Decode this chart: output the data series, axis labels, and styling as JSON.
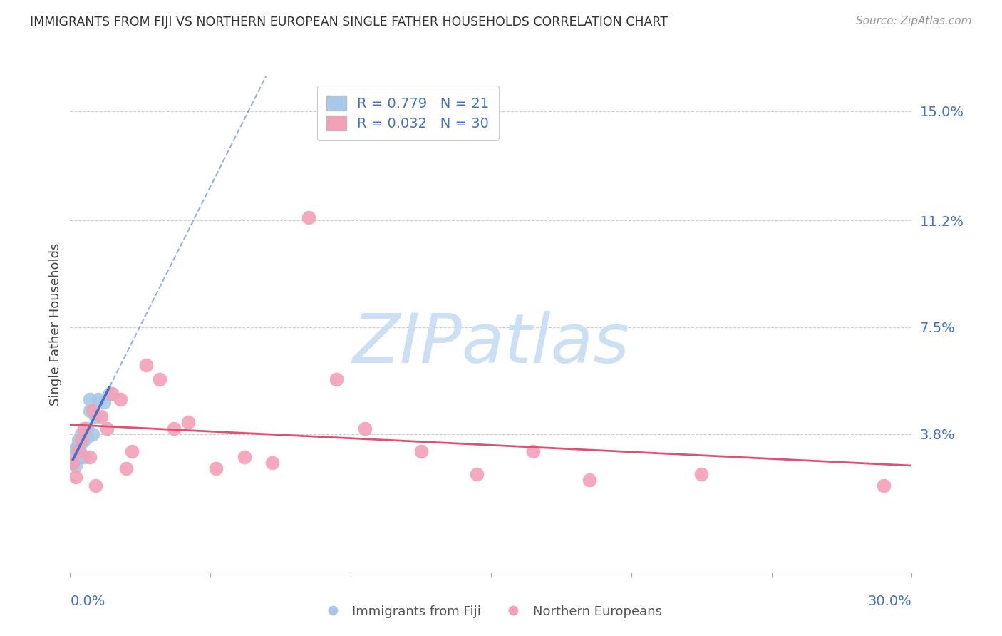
{
  "title": "IMMIGRANTS FROM FIJI VS NORTHERN EUROPEAN SINGLE FATHER HOUSEHOLDS CORRELATION CHART",
  "source": "Source: ZipAtlas.com",
  "ylabel": "Single Father Households",
  "xlim": [
    0.0,
    0.3
  ],
  "ylim": [
    -0.01,
    0.162
  ],
  "yticks": [
    0.038,
    0.075,
    0.112,
    0.15
  ],
  "ytick_labels": [
    "3.8%",
    "7.5%",
    "11.2%",
    "15.0%"
  ],
  "xtick_positions": [
    0.0,
    0.05,
    0.1,
    0.15,
    0.2,
    0.25,
    0.3
  ],
  "grid_color": "#cccccc",
  "background_color": "#ffffff",
  "fiji_R": 0.779,
  "fiji_N": 21,
  "fiji_color": "#a8c8e8",
  "fiji_line_color": "#4472c4",
  "noreur_R": 0.032,
  "noreur_N": 30,
  "noreur_color": "#f4a0b8",
  "noreur_line_color": "#e05070",
  "fiji_x": [
    0.001,
    0.001,
    0.002,
    0.002,
    0.003,
    0.003,
    0.003,
    0.004,
    0.004,
    0.004,
    0.005,
    0.005,
    0.006,
    0.006,
    0.007,
    0.007,
    0.008,
    0.009,
    0.01,
    0.012,
    0.014
  ],
  "fiji_y": [
    0.028,
    0.032,
    0.027,
    0.033,
    0.03,
    0.033,
    0.036,
    0.031,
    0.035,
    0.038,
    0.03,
    0.036,
    0.037,
    0.04,
    0.046,
    0.05,
    0.038,
    0.044,
    0.05,
    0.049,
    0.052
  ],
  "noreur_x": [
    0.001,
    0.002,
    0.003,
    0.004,
    0.005,
    0.007,
    0.008,
    0.009,
    0.011,
    0.013,
    0.015,
    0.018,
    0.02,
    0.022,
    0.027,
    0.032,
    0.037,
    0.042,
    0.052,
    0.062,
    0.072,
    0.085,
    0.095,
    0.105,
    0.125,
    0.145,
    0.165,
    0.185,
    0.225,
    0.29
  ],
  "noreur_y": [
    0.028,
    0.023,
    0.032,
    0.036,
    0.04,
    0.03,
    0.046,
    0.02,
    0.044,
    0.04,
    0.052,
    0.05,
    0.026,
    0.032,
    0.062,
    0.057,
    0.04,
    0.042,
    0.026,
    0.03,
    0.028,
    0.113,
    0.057,
    0.04,
    0.032,
    0.024,
    0.032,
    0.022,
    0.024,
    0.02
  ],
  "watermark_zip": "ZIP",
  "watermark_atlas": "atlas",
  "watermark_color": "#cce0f5",
  "watermark_zip_color": "#b8d4ee",
  "watermark_atlas_color": "#c8ddf0"
}
